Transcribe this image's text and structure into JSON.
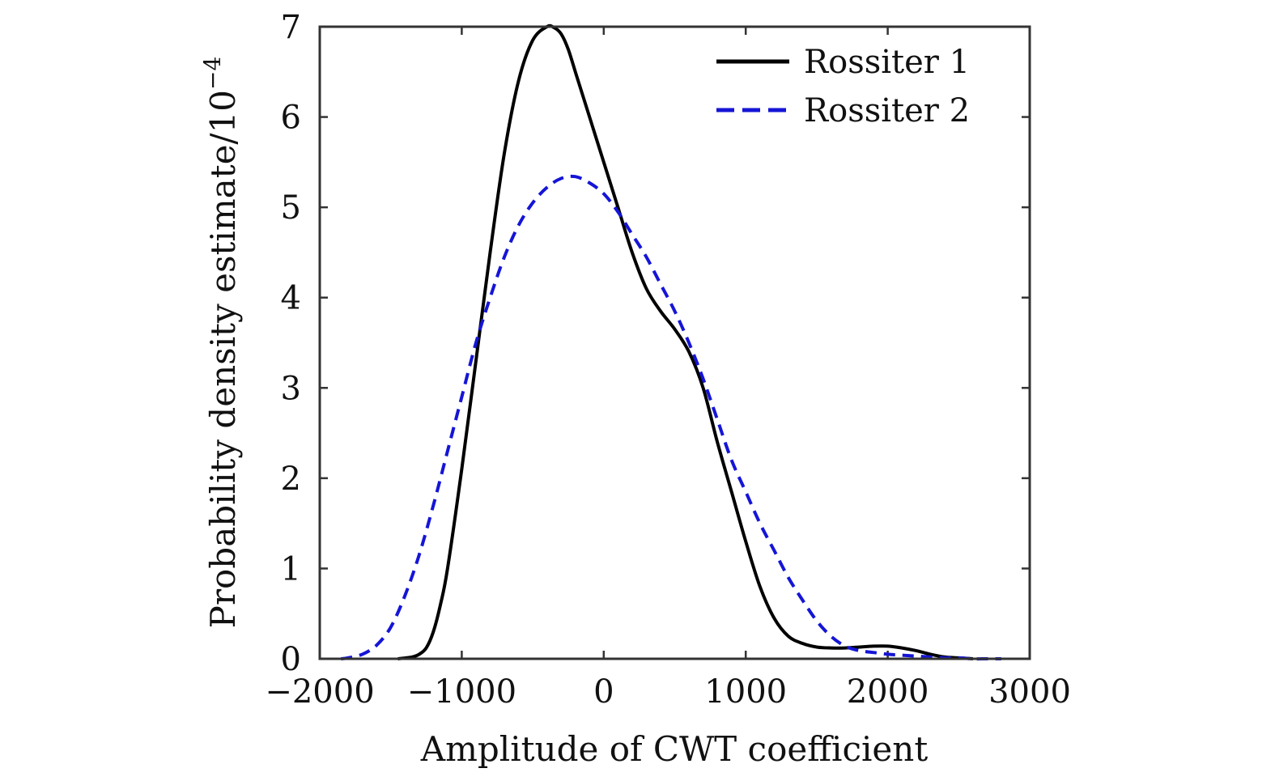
{
  "chart_data": {
    "type": "line",
    "xlabel": "Amplitude of CWT coefficient",
    "ylabel": "Probability density estimate/10",
    "ylabel_exponent": "−4",
    "xlim": [
      -2000,
      3000
    ],
    "ylim": [
      0,
      7
    ],
    "xticks": [
      -2000,
      -1000,
      0,
      1000,
      2000,
      3000
    ],
    "xtick_labels": [
      "−2000",
      "−1000",
      "0",
      "1000",
      "2000",
      "3000"
    ],
    "yticks": [
      0,
      1,
      2,
      3,
      4,
      5,
      6,
      7
    ],
    "ytick_labels": [
      "0",
      "1",
      "2",
      "3",
      "4",
      "5",
      "6",
      "7"
    ],
    "grid": false,
    "legend_position": "top-right",
    "series": [
      {
        "name": "Rossiter 1",
        "color": "#000000",
        "style": "solid",
        "x": [
          -1450,
          -1350,
          -1300,
          -1250,
          -1200,
          -1150,
          -1100,
          -1000,
          -900,
          -800,
          -700,
          -600,
          -500,
          -400,
          -350,
          -300,
          -250,
          -200,
          -150,
          -100,
          0,
          100,
          200,
          300,
          400,
          500,
          600,
          700,
          800,
          900,
          1000,
          1100,
          1200,
          1300,
          1400,
          1500,
          1600,
          1700,
          1800,
          1900,
          2000,
          2100,
          2200,
          2300,
          2400,
          2500,
          2600
        ],
        "y": [
          0,
          0.02,
          0.05,
          0.12,
          0.3,
          0.6,
          1.0,
          2.1,
          3.3,
          4.5,
          5.6,
          6.4,
          6.85,
          7.0,
          6.99,
          6.92,
          6.75,
          6.5,
          6.25,
          6.0,
          5.5,
          5.0,
          4.5,
          4.1,
          3.85,
          3.65,
          3.4,
          3.0,
          2.4,
          1.85,
          1.3,
          0.8,
          0.45,
          0.25,
          0.17,
          0.13,
          0.12,
          0.12,
          0.13,
          0.14,
          0.14,
          0.12,
          0.09,
          0.05,
          0.02,
          0.01,
          0.0
        ]
      },
      {
        "name": "Rossiter 2",
        "color": "#1515d6",
        "style": "dashed",
        "x": [
          -1850,
          -1800,
          -1700,
          -1600,
          -1500,
          -1400,
          -1300,
          -1200,
          -1100,
          -1000,
          -900,
          -800,
          -700,
          -600,
          -500,
          -400,
          -300,
          -200,
          -100,
          0,
          100,
          200,
          300,
          400,
          500,
          600,
          700,
          800,
          900,
          1000,
          1100,
          1200,
          1300,
          1400,
          1500,
          1600,
          1700,
          1800,
          1900,
          2000,
          2100,
          2200,
          2300,
          2400,
          2500,
          2600,
          2700,
          2800
        ],
        "y": [
          0,
          0.01,
          0.05,
          0.15,
          0.35,
          0.7,
          1.15,
          1.7,
          2.3,
          2.9,
          3.5,
          4.0,
          4.45,
          4.8,
          5.05,
          5.22,
          5.32,
          5.34,
          5.27,
          5.15,
          4.95,
          4.7,
          4.45,
          4.15,
          3.85,
          3.5,
          3.1,
          2.65,
          2.2,
          1.85,
          1.5,
          1.2,
          0.9,
          0.65,
          0.42,
          0.25,
          0.14,
          0.09,
          0.07,
          0.05,
          0.04,
          0.03,
          0.02,
          0.01,
          0.01,
          0.0,
          0.0,
          0.0
        ]
      }
    ]
  }
}
